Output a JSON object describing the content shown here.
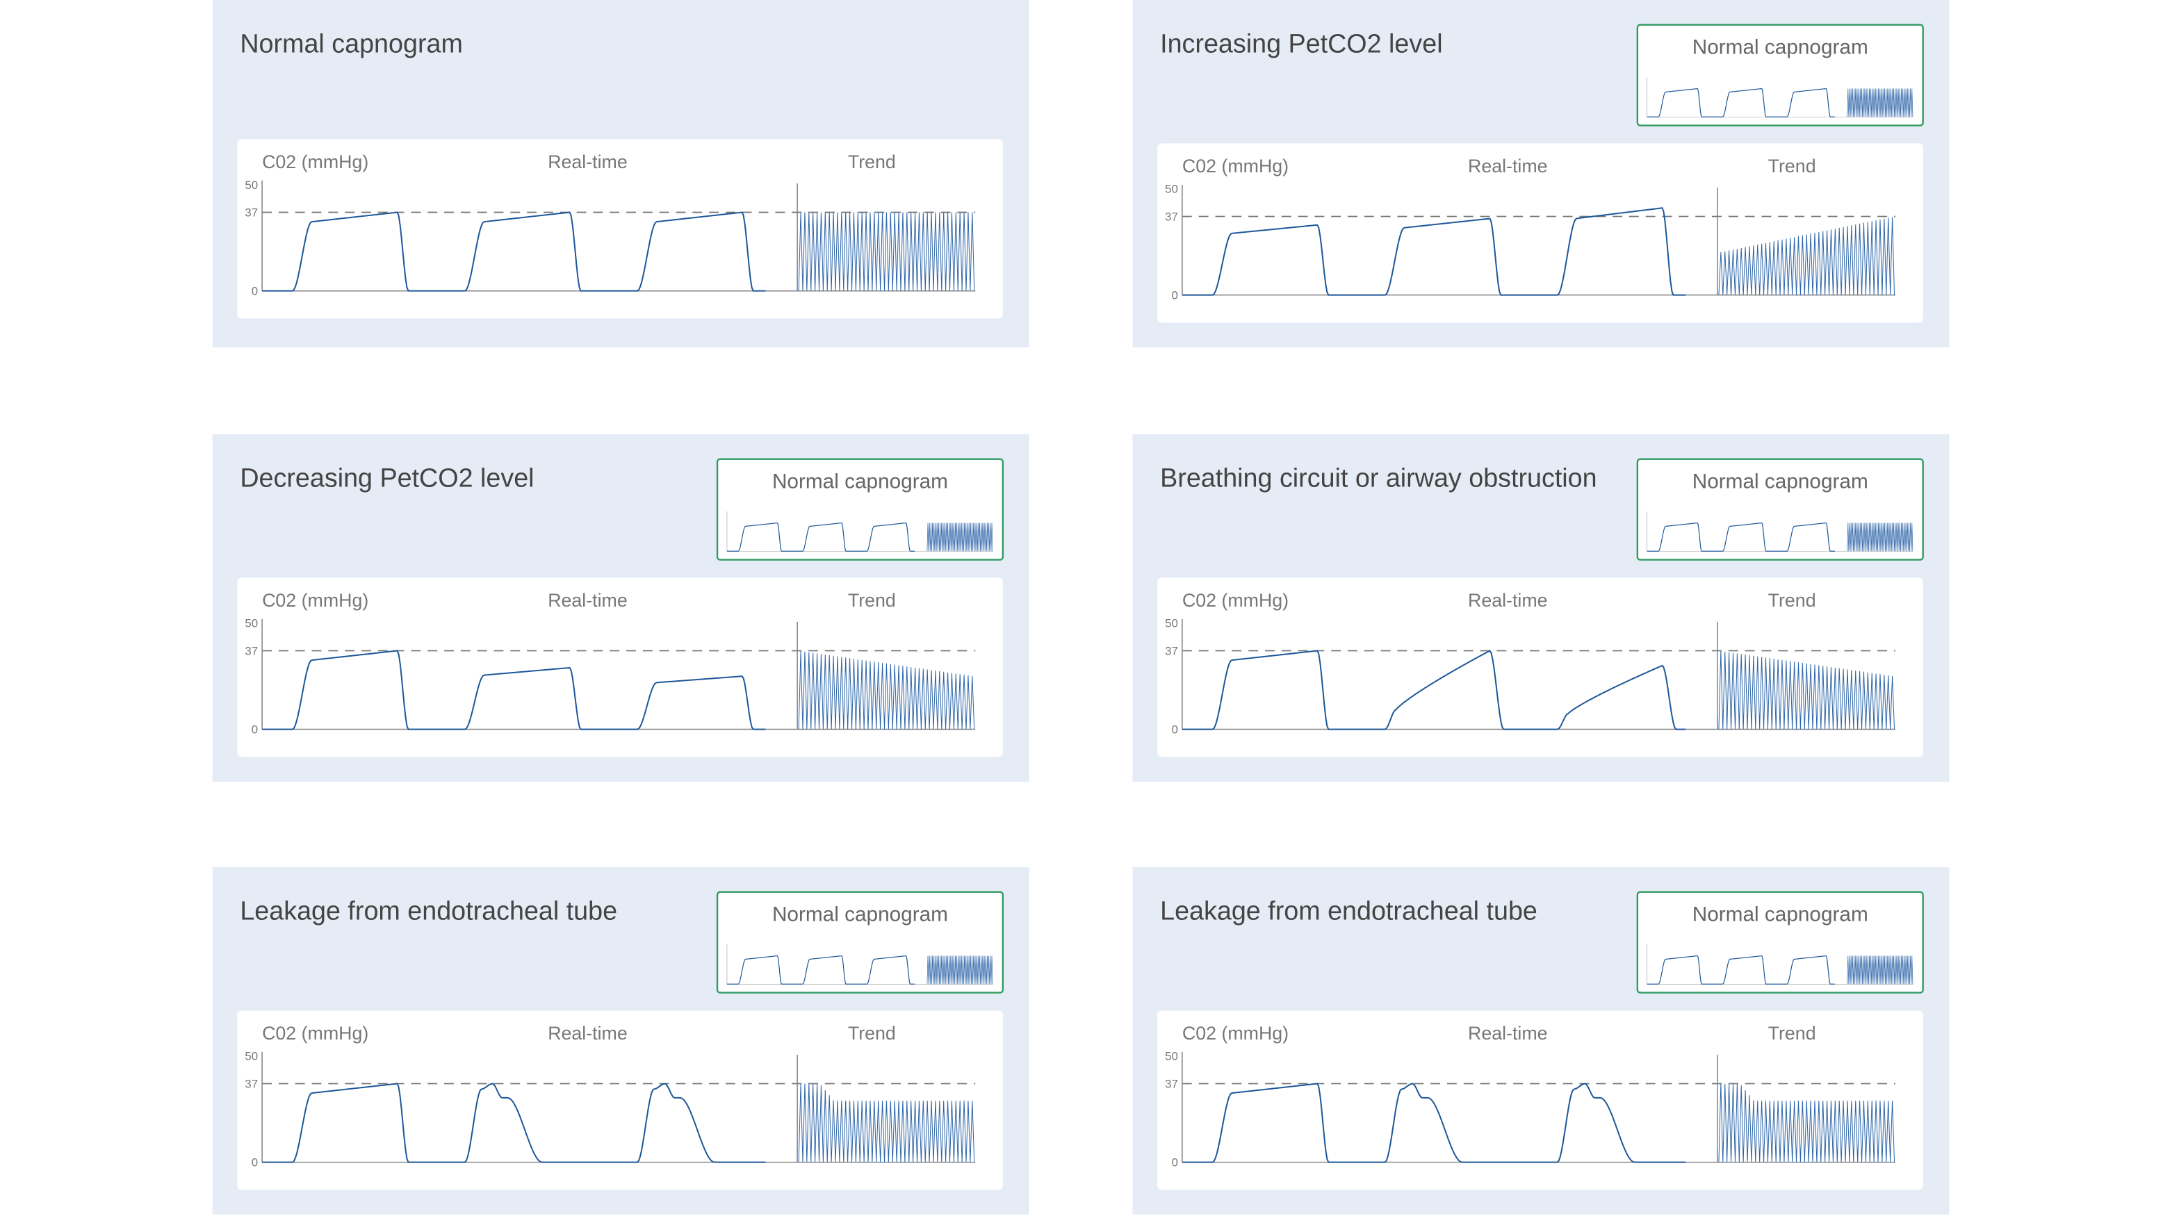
{
  "panels": [
    {
      "title": "Normal capnogram",
      "axis_label": "C02 (mmHg)",
      "realtime_label": "Real-time",
      "trend_label": "Trend",
      "ticks": [
        "50",
        "37",
        "0"
      ]
    },
    {
      "title": "Increasing PetCO2 level",
      "inset_label": "Normal capnogram",
      "axis_label": "C02 (mmHg)",
      "realtime_label": "Real-time",
      "trend_label": "Trend",
      "ticks": [
        "50",
        "37",
        "0"
      ]
    },
    {
      "title": "Decreasing PetCO2 level",
      "inset_label": "Normal capnogram",
      "axis_label": "C02 (mmHg)",
      "realtime_label": "Real-time",
      "trend_label": "Trend",
      "ticks": [
        "50",
        "37",
        "0"
      ]
    },
    {
      "title": "Breathing circuit or airway obstruction",
      "inset_label": "Normal capnogram",
      "axis_label": "C02 (mmHg)",
      "realtime_label": "Real-time",
      "trend_label": "Trend",
      "ticks": [
        "50",
        "37",
        "0"
      ]
    },
    {
      "title": "Leakage from endotracheal tube",
      "inset_label": "Normal capnogram",
      "axis_label": "C02 (mmHg)",
      "realtime_label": "Real-time",
      "trend_label": "Trend",
      "ticks": [
        "50",
        "37",
        "0"
      ]
    },
    {
      "title": "Leakage from endotracheal tube",
      "inset_label": "Normal capnogram",
      "axis_label": "C02 (mmHg)",
      "realtime_label": "Real-time",
      "trend_label": "Trend",
      "ticks": [
        "50",
        "37",
        "0"
      ]
    }
  ]
}
